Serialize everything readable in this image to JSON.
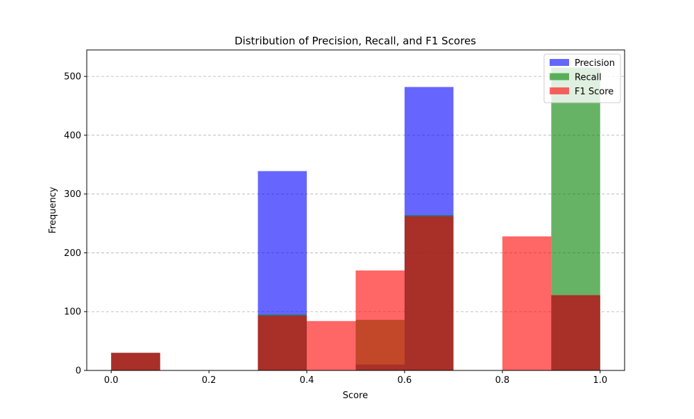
{
  "chart_data": {
    "type": "bar",
    "title": "Distribution of Precision, Recall, and F1 Scores",
    "xlabel": "Score",
    "ylabel": "Frequency",
    "xlim": [
      -0.05,
      1.05
    ],
    "ylim": [
      0,
      545
    ],
    "x_ticks": [
      0.0,
      0.2,
      0.4,
      0.6,
      0.8,
      1.0
    ],
    "x_tick_labels": [
      "0.0",
      "0.2",
      "0.4",
      "0.6",
      "0.8",
      "1.0"
    ],
    "y_ticks": [
      0,
      100,
      200,
      300,
      400,
      500
    ],
    "y_tick_labels": [
      "0",
      "100",
      "200",
      "300",
      "400",
      "500"
    ],
    "bin_edges": [
      0.0,
      0.1,
      0.2,
      0.3,
      0.4,
      0.5,
      0.6,
      0.7,
      0.8,
      0.9,
      1.0
    ],
    "grid": "y-dashed",
    "legend_position": "top-right",
    "series": [
      {
        "name": "Precision",
        "color": "#0000ff",
        "opacity": 0.6,
        "values": [
          30,
          0,
          0,
          339,
          0,
          10,
          482,
          0,
          0,
          128
        ]
      },
      {
        "name": "Recall",
        "color": "#008000",
        "opacity": 0.6,
        "values": [
          30,
          0,
          0,
          95,
          0,
          86,
          264,
          0,
          0,
          515
        ]
      },
      {
        "name": "F1 Score",
        "color": "#ff0000",
        "opacity": 0.6,
        "values": [
          30,
          0,
          0,
          93,
          84,
          170,
          262,
          0,
          228,
          128
        ]
      }
    ]
  }
}
